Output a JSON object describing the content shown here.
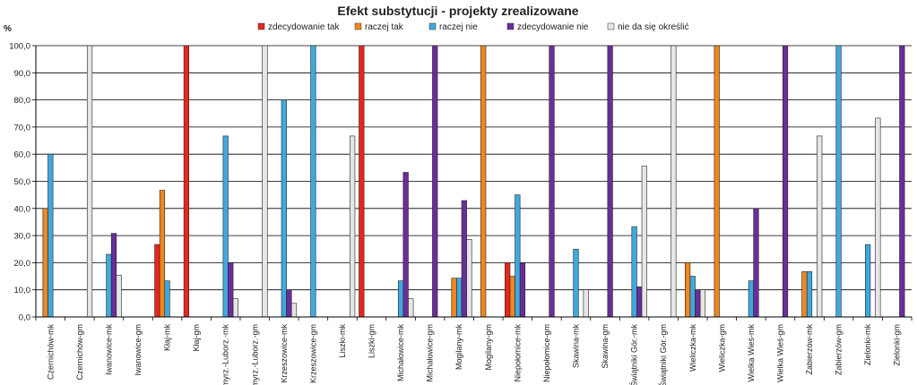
{
  "chart_data": {
    "type": "bar",
    "title": "Efekt substytucji - projekty zrealizowane",
    "ylabel": "%",
    "xlabel": "",
    "ylim": [
      0,
      100
    ],
    "yticks": [
      "0,0",
      "10,0",
      "20,0",
      "30,0",
      "40,0",
      "50,0",
      "60,0",
      "70,0",
      "80,0",
      "90,0",
      "100,0"
    ],
    "legend_position": "top",
    "grid": true,
    "categories": [
      "Czernichów-mk",
      "Czernichów-gm",
      "Iwanowice-mk",
      "Iwanowice-gm",
      "Kłaj-mk",
      "Kłaj-gm",
      "Kocmyrz.-Luborz.-mk",
      "Kocmyrz.-Luborz.-gm",
      "Krzeszowice-mk",
      "Krzeszowice-gm",
      "Liszki-mk",
      "Liszki-gm",
      "Michałowice-mk",
      "Michałowice-gm",
      "Mogilany-mk",
      "Mogilany-gm",
      "Niepołomice-mk",
      "Niepołomice-gm",
      "Skawina-mk",
      "Skawina-gm",
      "Świątniki Gór.-mk",
      "Świątniki Gór.-gm",
      "Wieliczka-mk",
      "Wieliczka-gm",
      "Wielka Wieś-mk",
      "Wielka Wieś-gm",
      "Zabierzów-mk",
      "Zabierzów-gm",
      "Zielonki-mk",
      "Zielonki-gm"
    ],
    "series": [
      {
        "name": "zdecydowanie tak",
        "color": "#e8261e",
        "values": [
          0,
          0,
          0,
          0,
          26.7,
          100,
          0,
          0,
          0,
          0,
          0,
          100,
          0,
          0,
          0,
          0,
          20,
          0,
          0,
          0,
          0,
          0,
          0,
          0,
          0,
          0,
          0,
          0,
          0,
          0
        ]
      },
      {
        "name": "raczej tak",
        "color": "#f0871f",
        "values": [
          40,
          0,
          0,
          0,
          46.7,
          0,
          0,
          0,
          0,
          0,
          0,
          0,
          0,
          0,
          14.3,
          100,
          15,
          0,
          0,
          0,
          0,
          0,
          20,
          100,
          0,
          0,
          16.7,
          0,
          0,
          0
        ]
      },
      {
        "name": "raczej nie",
        "color": "#3fa9df",
        "values": [
          60,
          0,
          23.1,
          0,
          13.3,
          0,
          66.7,
          0,
          80,
          100,
          0,
          0,
          13.3,
          0,
          14.3,
          0,
          45,
          0,
          25,
          0,
          33.3,
          0,
          15,
          0,
          13.3,
          0,
          16.7,
          100,
          26.7,
          0
        ]
      },
      {
        "name": "zdecydowanie nie",
        "color": "#6a2e9a",
        "values": [
          0,
          0,
          30.8,
          0,
          0,
          0,
          20,
          0,
          10,
          0,
          0,
          0,
          53.3,
          100,
          42.9,
          0,
          20,
          100,
          0,
          100,
          11.1,
          0,
          10,
          0,
          40,
          100,
          0,
          0,
          0,
          100
        ]
      },
      {
        "name": "nie da się określić",
        "color": "#e6e6e6",
        "values": [
          0,
          100,
          15.4,
          0,
          0,
          0,
          6.7,
          100,
          5,
          0,
          66.7,
          0,
          6.7,
          0,
          28.6,
          0,
          0,
          0,
          10,
          0,
          55.6,
          100,
          10,
          0,
          0,
          0,
          66.7,
          0,
          73.3,
          0
        ]
      }
    ]
  }
}
